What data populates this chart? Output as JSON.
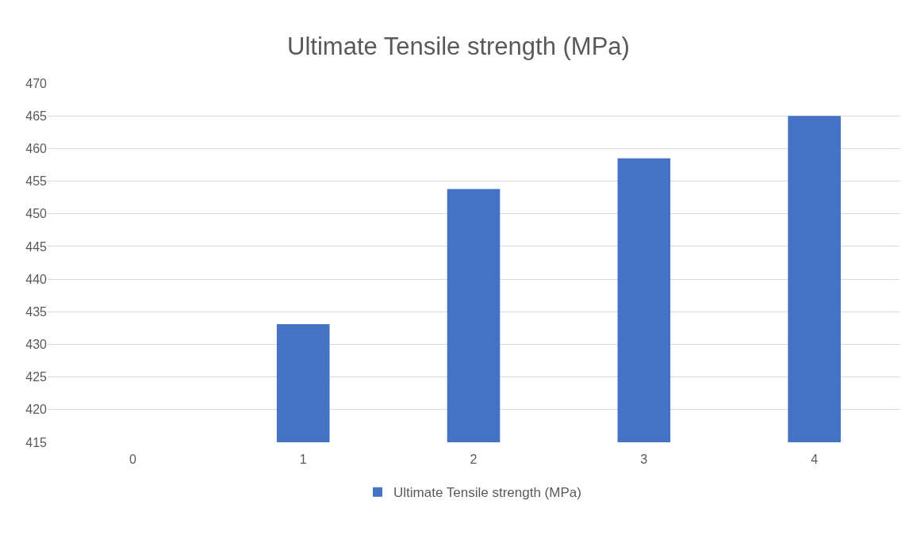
{
  "chart_data": {
    "type": "bar",
    "title": "Ultimate Tensile strength (MPa)",
    "categories": [
      "0",
      "1",
      "2",
      "3",
      "4"
    ],
    "series": [
      {
        "name": "Ultimate Tensile strength (MPa)",
        "color": "#4472c4",
        "values": [
          null,
          433.1,
          453.8,
          458.5,
          465.0
        ]
      }
    ],
    "ylim": [
      415,
      470
    ],
    "yticks": [
      415,
      420,
      425,
      430,
      435,
      440,
      445,
      450,
      455,
      460,
      465,
      470
    ],
    "grid": "y",
    "legend": "bottom"
  }
}
